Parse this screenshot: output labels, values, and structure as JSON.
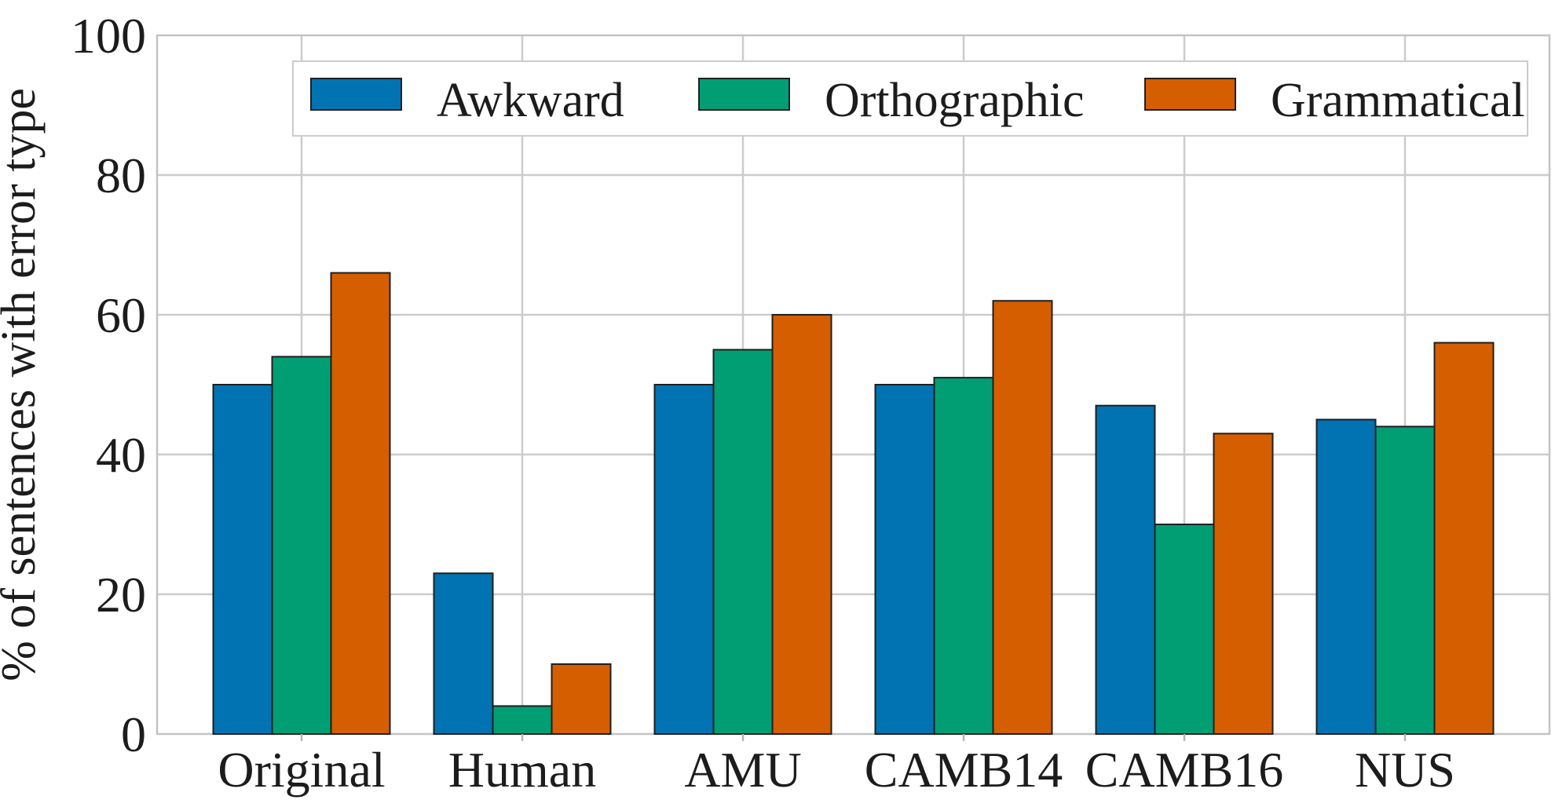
{
  "chart_data": {
    "type": "bar",
    "categories": [
      "Original",
      "Human",
      "AMU",
      "CAMB14",
      "CAMB16",
      "NUS"
    ],
    "series": [
      {
        "name": "Awkward",
        "color": "#0173B2",
        "values": [
          50,
          23,
          50,
          50,
          47,
          45
        ]
      },
      {
        "name": "Orthographic",
        "color": "#029E73",
        "values": [
          54,
          4,
          55,
          51,
          30,
          44
        ]
      },
      {
        "name": "Grammatical",
        "color": "#D55E00",
        "values": [
          66,
          10,
          60,
          62,
          43,
          56
        ]
      }
    ],
    "xlabel": "",
    "ylabel": "% of sentences with error type",
    "ylim": [
      0,
      100
    ],
    "yticks": [
      0,
      20,
      40,
      60,
      80,
      100
    ],
    "grid": true,
    "legend_position": "upper center",
    "style": {
      "bar_edge_color": "#1f1f1f",
      "grid_color": "#cccccc",
      "spine_color": "#c3c3c3",
      "tick_color": "#b5b5b5",
      "text_color": "#1c1c1c",
      "legend_border_color": "#cccccc",
      "background": "#ffffff"
    }
  }
}
